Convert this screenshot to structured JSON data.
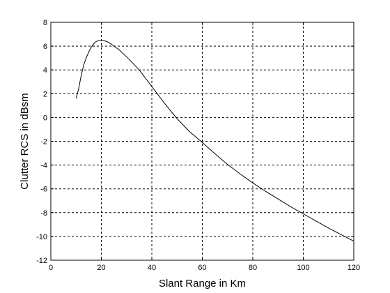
{
  "chart_data": {
    "type": "line",
    "title": "",
    "xlabel": "Slant Range in Km",
    "ylabel": "Clutter RCS in dBsm",
    "xlim": [
      0,
      120
    ],
    "ylim": [
      -12,
      8
    ],
    "xticks": [
      "0",
      "20",
      "40",
      "60",
      "80",
      "100",
      "120"
    ],
    "yticks": [
      "8",
      "6",
      "4",
      "2",
      "0",
      "-2",
      "-4",
      "-6",
      "-8",
      "-10",
      "-12"
    ],
    "grid": true,
    "legend": "none",
    "series": [
      {
        "color": "#000000",
        "x": [
          10,
          11,
          12,
          13,
          14,
          15,
          16,
          17,
          18,
          19,
          20,
          21,
          22,
          23,
          24,
          25,
          27,
          30,
          35,
          40,
          45,
          50,
          55,
          60,
          65,
          70,
          75,
          80,
          85,
          90,
          95,
          100,
          105,
          110,
          115,
          120
        ],
        "y": [
          1.6,
          2.4,
          3.5,
          4.4,
          5.0,
          5.5,
          5.9,
          6.2,
          6.4,
          6.45,
          6.5,
          6.45,
          6.4,
          6.3,
          6.15,
          6.0,
          5.7,
          5.1,
          4.0,
          2.6,
          1.2,
          -0.1,
          -1.2,
          -2.1,
          -3.05,
          -3.95,
          -4.75,
          -5.5,
          -6.2,
          -6.85,
          -7.5,
          -8.1,
          -8.7,
          -9.3,
          -9.85,
          -10.4
        ]
      }
    ]
  }
}
